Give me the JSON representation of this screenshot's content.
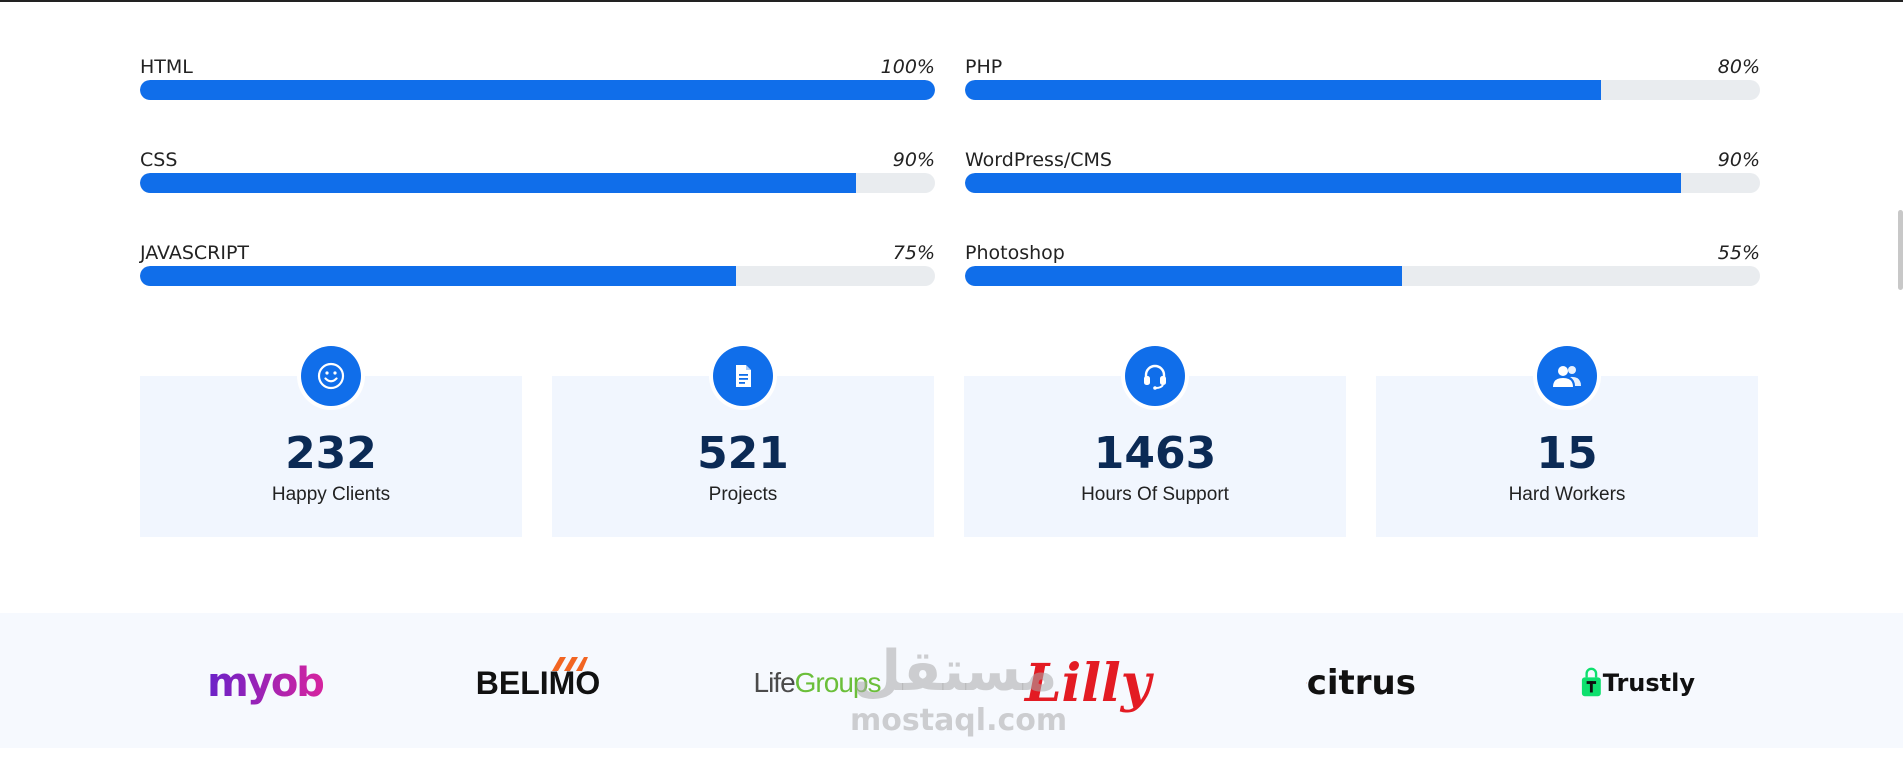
{
  "skills": {
    "left": [
      {
        "name": "HTML",
        "percent_label": "100%",
        "value": 100
      },
      {
        "name": "CSS",
        "percent_label": "90%",
        "value": 90
      },
      {
        "name": "JAVASCRIPT",
        "percent_label": "75%",
        "value": 75
      }
    ],
    "right": [
      {
        "name": "PHP",
        "percent_label": "80%",
        "value": 80
      },
      {
        "name": "WordPress/CMS",
        "percent_label": "90%",
        "value": 90
      },
      {
        "name": "Photoshop",
        "percent_label": "55%",
        "value": 55
      }
    ]
  },
  "counts": [
    {
      "icon": "smile-icon",
      "number": "232",
      "label": "Happy Clients"
    },
    {
      "icon": "document-icon",
      "number": "521",
      "label": "Projects"
    },
    {
      "icon": "headset-icon",
      "number": "1463",
      "label": "Hours Of Support"
    },
    {
      "icon": "people-icon",
      "number": "15",
      "label": "Hard Workers"
    }
  ],
  "clients": {
    "myob": "myob",
    "belimo": "BELIMO",
    "lifegroups_a": "Life",
    "lifegroups_b": "Groups",
    "lilly": "Lilly",
    "citrus": "citrus",
    "trustly": "Trustly"
  },
  "watermark": {
    "arabic": "مستقل",
    "latin": "mostaql.com"
  },
  "colors": {
    "accent": "#106eea",
    "track": "#e9ecef",
    "count_bg": "#f1f6fe",
    "count_number": "#0b2a55"
  }
}
